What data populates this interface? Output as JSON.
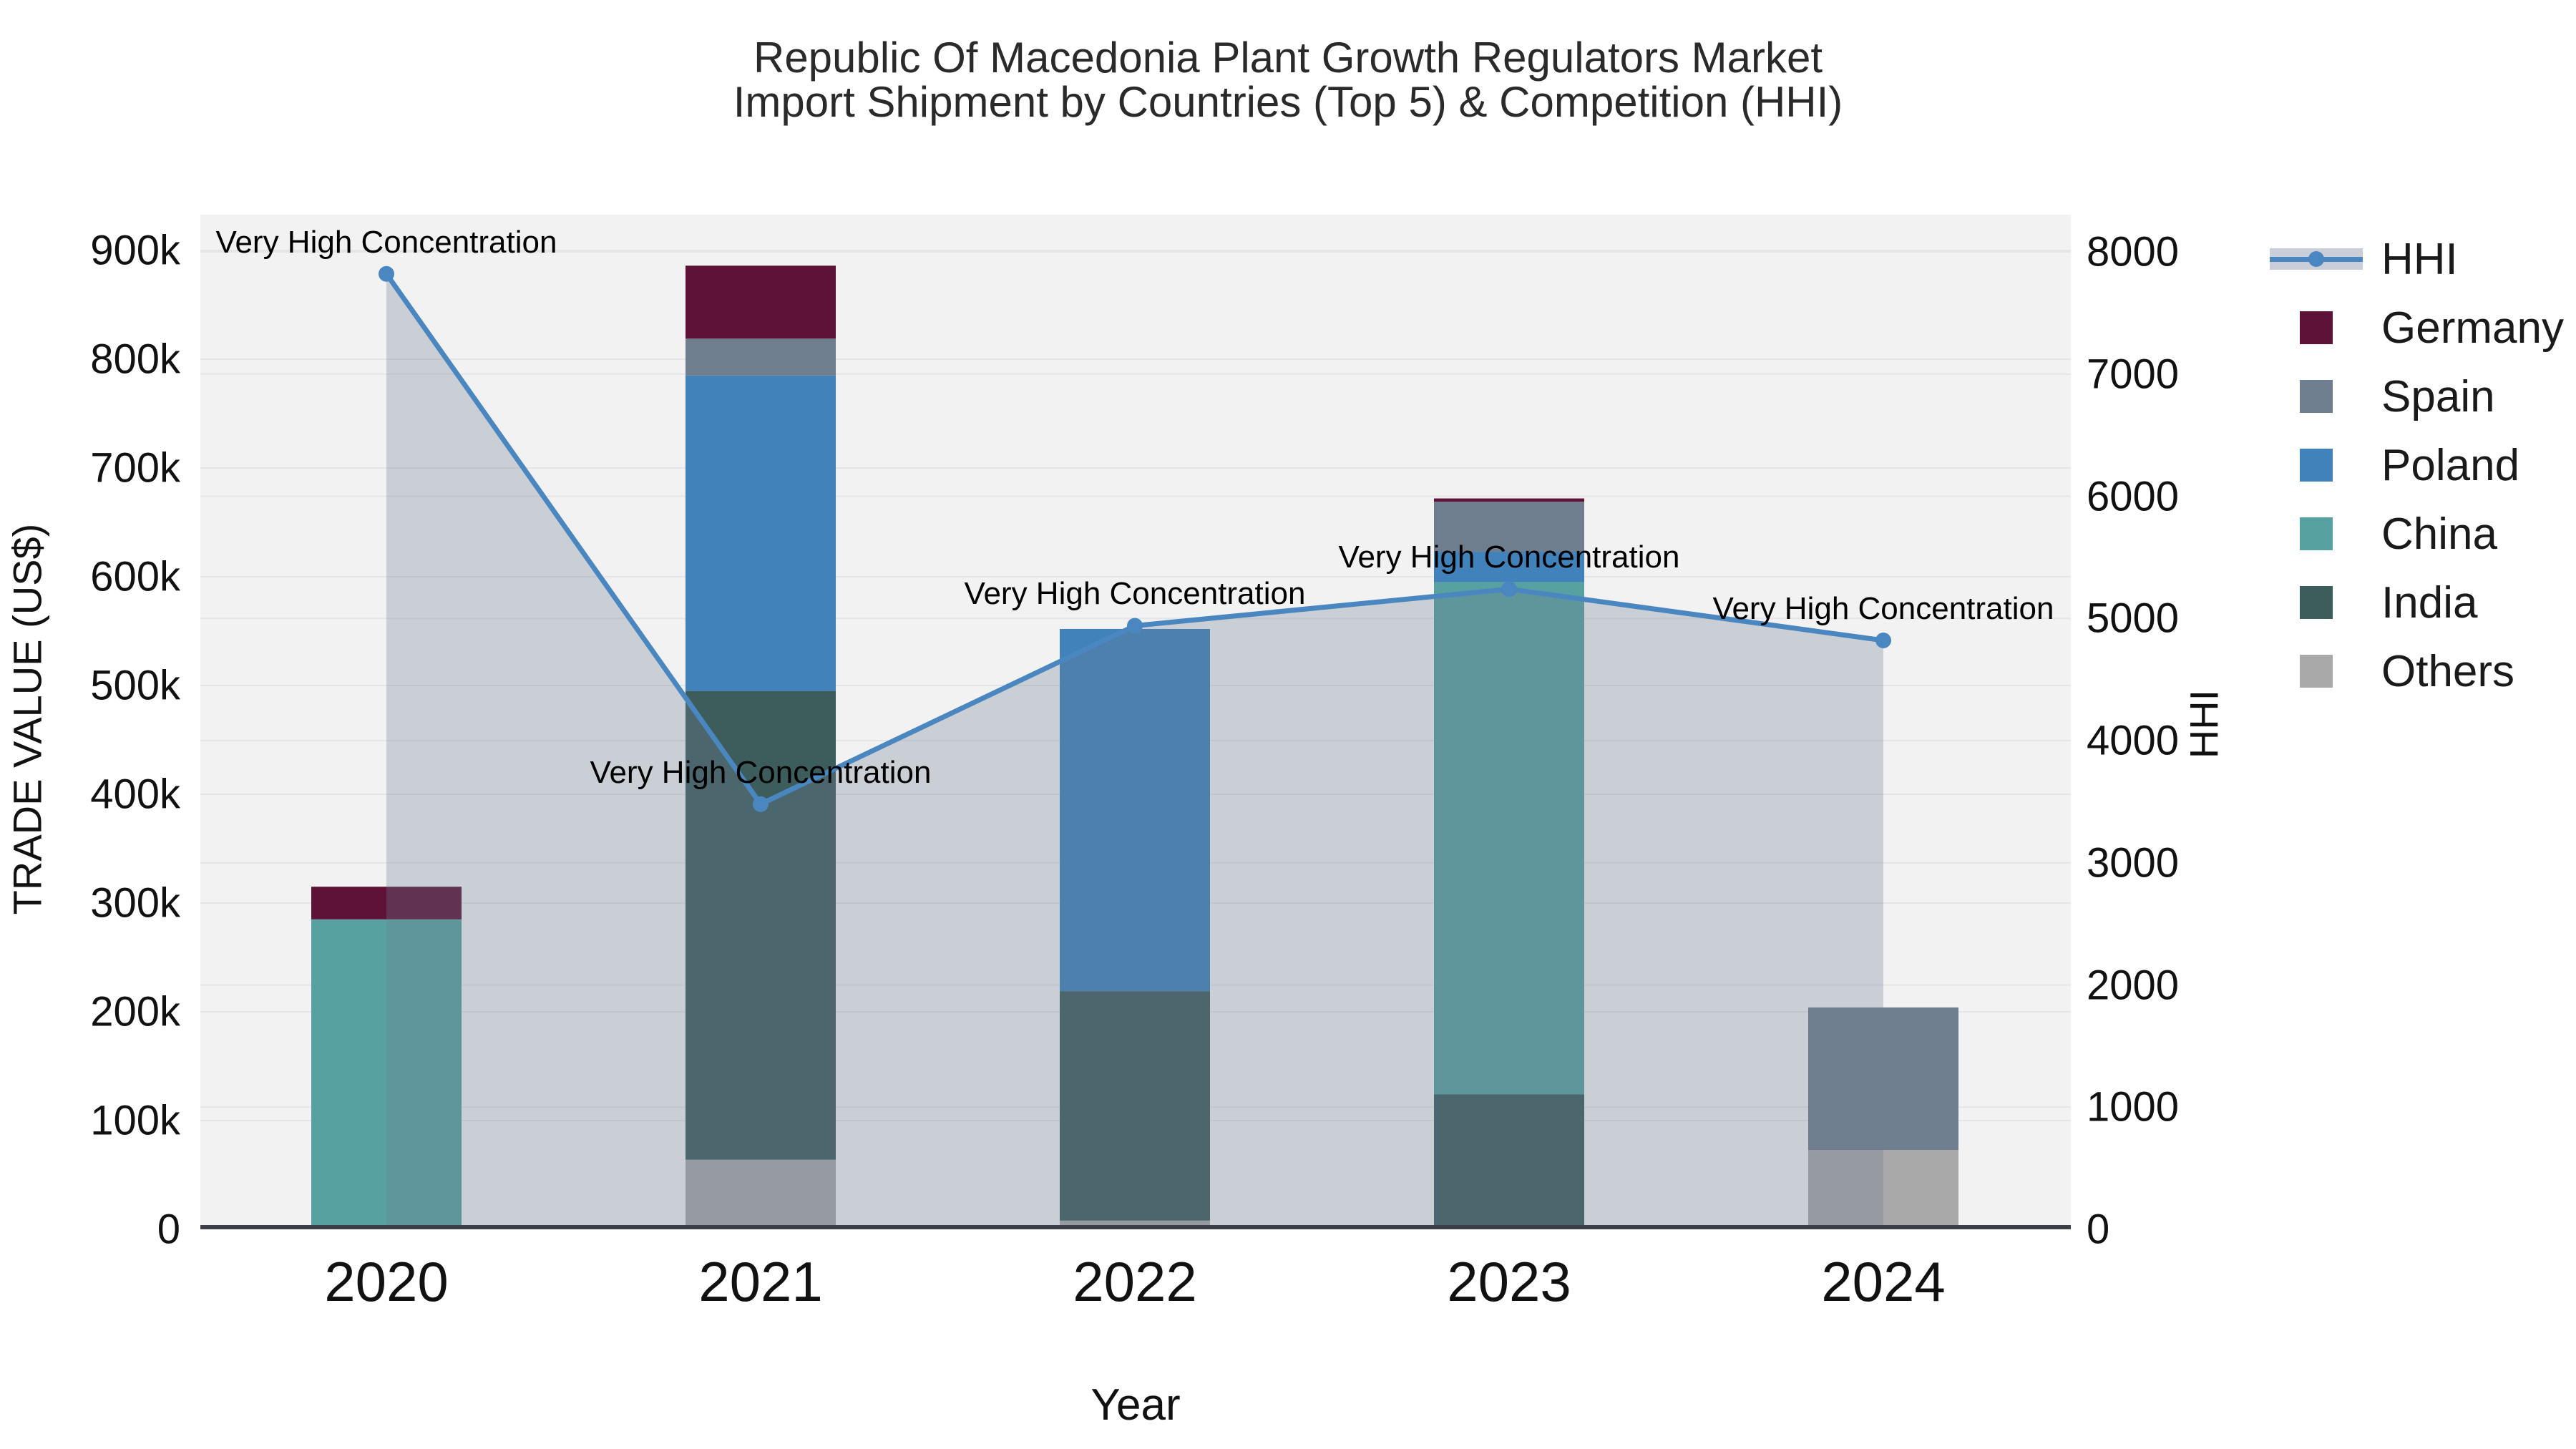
{
  "title": {
    "line1": "Republic Of Macedonia Plant Growth Regulators Market",
    "line2": "Import Shipment by Countries (Top 5) & Competition (HHI)"
  },
  "chart_data": {
    "type": "bar+line",
    "title": "Republic Of Macedonia Plant Growth Regulators Market — Import Shipment by Countries (Top 5) & Competition (HHI)",
    "categories": [
      "2020",
      "2021",
      "2022",
      "2023",
      "2024"
    ],
    "bar_series": [
      {
        "name": "Others",
        "color": "#a8a8a8",
        "values": [
          0,
          64000,
          8000,
          0,
          73000
        ]
      },
      {
        "name": "India",
        "color": "#3d5c5c",
        "values": [
          0,
          431000,
          211000,
          124000,
          0
        ]
      },
      {
        "name": "China",
        "color": "#58a1a1",
        "values": [
          285000,
          0,
          0,
          471000,
          0
        ]
      },
      {
        "name": "Poland",
        "color": "#4182bb",
        "values": [
          0,
          290000,
          333000,
          28000,
          0
        ]
      },
      {
        "name": "Spain",
        "color": "#6f7e8e",
        "values": [
          0,
          34000,
          0,
          46000,
          131000
        ]
      },
      {
        "name": "Germany",
        "color": "#5e1237",
        "values": [
          30000,
          67000,
          0,
          3000,
          0
        ]
      }
    ],
    "bar_totals": [
      315000,
      886000,
      552000,
      672000,
      204000
    ],
    "line_series": {
      "name": "HHI",
      "color": "#4a87c0",
      "fill_color": "rgba(110,126,146,0.30)",
      "values": [
        7820,
        3480,
        4940,
        5240,
        4820
      ]
    },
    "annotations": [
      "Very High Concentration",
      "Very High Concentration",
      "Very High Concentration",
      "Very High Concentration",
      "Very High Concentration"
    ],
    "xlabel": "Year",
    "ylabel_left": "TRADE VALUE (US$)",
    "ylabel_right": "HHI",
    "ylim_left": [
      0,
      933000
    ],
    "ylim_right": [
      0,
      8300
    ],
    "grid": true,
    "legend_position": "right"
  },
  "axes": {
    "left": {
      "title": "TRADE VALUE (US$)",
      "ticks": [
        "0",
        "100k",
        "200k",
        "300k",
        "400k",
        "500k",
        "600k",
        "700k",
        "800k",
        "900k"
      ]
    },
    "right": {
      "title": "HHI",
      "ticks": [
        "0",
        "1000",
        "2000",
        "3000",
        "4000",
        "5000",
        "6000",
        "7000",
        "8000"
      ]
    },
    "x": {
      "title": "Year",
      "ticks": [
        "2020",
        "2021",
        "2022",
        "2023",
        "2024"
      ]
    }
  },
  "legend": [
    {
      "label": "HHI",
      "type": "line",
      "color": "#4a87c0",
      "band_color": "#c9ced8"
    },
    {
      "label": "Germany",
      "type": "square",
      "color": "#5e1237"
    },
    {
      "label": "Spain",
      "type": "square",
      "color": "#6f7e8e"
    },
    {
      "label": "Poland",
      "type": "square",
      "color": "#4182bb"
    },
    {
      "label": "China",
      "type": "square",
      "color": "#58a1a1"
    },
    {
      "label": "India",
      "type": "square",
      "color": "#3d5c5c"
    },
    {
      "label": "Others",
      "type": "square",
      "color": "#a8a8a8"
    }
  ],
  "colors": {
    "plot_bg": "#f2f2f2",
    "gridline": "#e5e5e8",
    "axis_line": "#3b4046",
    "hhi_line": "#4a87c0",
    "hhi_fill": "rgba(110,126,146,0.30)",
    "text": "#111111"
  }
}
